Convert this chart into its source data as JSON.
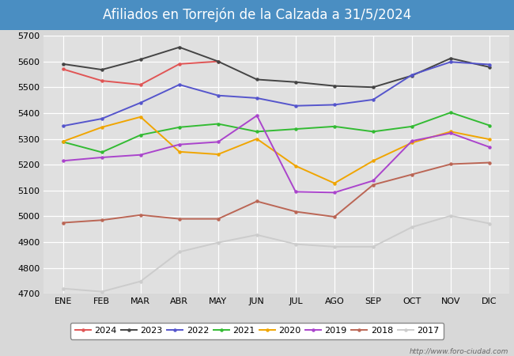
{
  "title": "Afiliados en Torrejón de la Calzada a 31/5/2024",
  "months": [
    "ENE",
    "FEB",
    "MAR",
    "ABR",
    "MAY",
    "JUN",
    "JUL",
    "AGO",
    "SEP",
    "OCT",
    "NOV",
    "DIC"
  ],
  "ylim": [
    4700,
    5700
  ],
  "yticks": [
    4700,
    4800,
    4900,
    5000,
    5100,
    5200,
    5300,
    5400,
    5500,
    5600,
    5700
  ],
  "series": {
    "2024": {
      "color": "#e05555",
      "linewidth": 1.4,
      "data": [
        5570,
        5525,
        5510,
        5590,
        5600,
        null,
        null,
        null,
        null,
        null,
        null,
        null
      ]
    },
    "2023": {
      "color": "#444444",
      "linewidth": 1.4,
      "data": [
        5590,
        5568,
        5608,
        5655,
        5600,
        5530,
        5520,
        5505,
        5500,
        5545,
        5612,
        5578
      ]
    },
    "2022": {
      "color": "#5555cc",
      "linewidth": 1.4,
      "data": [
        5350,
        5378,
        5440,
        5510,
        5468,
        5458,
        5428,
        5432,
        5452,
        5548,
        5598,
        5588
      ]
    },
    "2021": {
      "color": "#33bb33",
      "linewidth": 1.4,
      "data": [
        5288,
        5248,
        5315,
        5345,
        5358,
        5328,
        5338,
        5348,
        5328,
        5348,
        5402,
        5352
      ]
    },
    "2020": {
      "color": "#f0a500",
      "linewidth": 1.4,
      "data": [
        5290,
        5345,
        5385,
        5250,
        5240,
        5300,
        5195,
        5128,
        5215,
        5285,
        5328,
        5298
      ]
    },
    "2019": {
      "color": "#aa44cc",
      "linewidth": 1.4,
      "data": [
        5215,
        5228,
        5238,
        5278,
        5288,
        5390,
        5095,
        5092,
        5138,
        5292,
        5322,
        5268
      ]
    },
    "2018": {
      "color": "#bb6655",
      "linewidth": 1.4,
      "data": [
        4975,
        4985,
        5005,
        4990,
        4990,
        5058,
        5018,
        4998,
        5122,
        5162,
        5202,
        5208
      ]
    },
    "2017": {
      "color": "#cccccc",
      "linewidth": 1.4,
      "data": [
        4720,
        4708,
        4748,
        4862,
        4898,
        4928,
        4892,
        4882,
        4882,
        4958,
        5002,
        4972
      ]
    }
  },
  "legend_order": [
    "2024",
    "2023",
    "2022",
    "2021",
    "2020",
    "2019",
    "2018",
    "2017"
  ],
  "background_color": "#d8d8d8",
  "plot_bg_color": "#e0e0e0",
  "title_bg_color": "#4a8ec2",
  "title_text_color": "#ffffff",
  "grid_color": "#ffffff",
  "url_text": "http://www.foro-ciudad.com",
  "title_fontsize": 12,
  "tick_fontsize": 8,
  "legend_fontsize": 8
}
